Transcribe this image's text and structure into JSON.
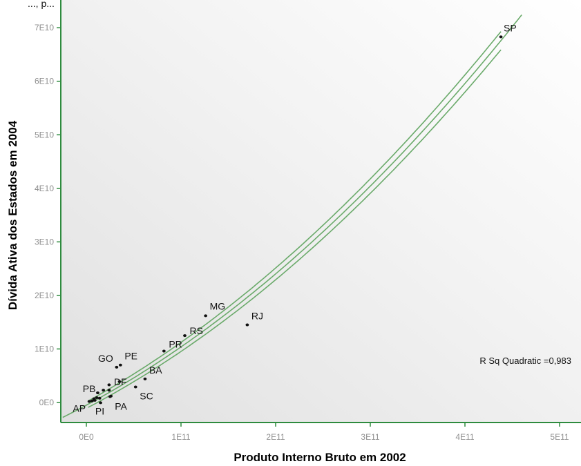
{
  "header_text": "..., p...",
  "chart_data": {
    "type": "scatter",
    "title": "",
    "xlabel": "Produto Interno Bruto em 2002",
    "ylabel": "Dívida Ativa dos Estados em 2004",
    "xlim": [
      -25000000000.0,
      500000000000.0
    ],
    "ylim": [
      -2500000000.0,
      74000000000.0
    ],
    "x_ticks": [
      0,
      100000000000.0,
      200000000000.0,
      300000000000.0,
      400000000000.0,
      500000000000.0
    ],
    "x_tick_labels": [
      "0E0",
      "1E11",
      "2E11",
      "3E11",
      "4E11",
      "5E11"
    ],
    "y_ticks": [
      0,
      10000000000.0,
      20000000000.0,
      30000000000.0,
      40000000000.0,
      50000000000.0,
      60000000000.0,
      70000000000.0
    ],
    "y_tick_labels": [
      "0E0",
      "1E10",
      "2E10",
      "3E10",
      "4E10",
      "5E10",
      "6E10",
      "7E10"
    ],
    "grid": false,
    "points": [
      {
        "label": "SP",
        "x": 438000000000.0,
        "y": 68300000000.0
      },
      {
        "label": "RJ",
        "x": 170000000000.0,
        "y": 14500000000.0
      },
      {
        "label": "MG",
        "x": 126000000000.0,
        "y": 16200000000.0
      },
      {
        "label": "RS",
        "x": 104000000000.0,
        "y": 12500000000.0
      },
      {
        "label": "PR",
        "x": 82000000000.0,
        "y": 9600000000.0
      },
      {
        "label": "BA",
        "x": 62000000000.0,
        "y": 4400000000.0
      },
      {
        "label": "SC",
        "x": 52000000000.0,
        "y": 2900000000.0
      },
      {
        "label": "PE",
        "x": 36000000000.0,
        "y": 7000000000.0
      },
      {
        "label": "GO",
        "x": 32000000000.0,
        "y": 6600000000.0
      },
      {
        "label": "DF",
        "x": 35000000000.0,
        "y": 3900000000.0
      },
      {
        "label": "PA",
        "x": 25000000000.0,
        "y": 1100000000.0
      },
      {
        "label": "PB",
        "x": 12000000000.0,
        "y": 1800000000.0
      },
      {
        "label": "PI",
        "x": 15000000000.0,
        "y": -50000000.0
      },
      {
        "label": "AP",
        "x": 3000000000.0,
        "y": 200000000.0
      },
      {
        "label": "",
        "x": 24000000000.0,
        "y": 2300000000.0
      },
      {
        "label": "",
        "x": 18000000000.0,
        "y": 2300000000.0
      },
      {
        "label": "",
        "x": 24000000000.0,
        "y": 3300000000.0
      },
      {
        "label": "",
        "x": 8000000000.0,
        "y": 700000000.0
      },
      {
        "label": "",
        "x": 11000000000.0,
        "y": 900000000.0
      },
      {
        "label": "",
        "x": 6000000000.0,
        "y": 300000000.0
      },
      {
        "label": "",
        "x": 14000000000.0,
        "y": 800000000.0
      },
      {
        "label": "",
        "x": 9000000000.0,
        "y": 400000000.0
      },
      {
        "label": "",
        "x": 26000000000.0,
        "y": 1200000000.0
      }
    ],
    "fit": {
      "type": "quadratic",
      "b0": -500000000.0,
      "b1": 0.095,
      "b2": 1.38e-13,
      "x_range": [
        -25000000000.0,
        460000000000.0
      ],
      "band_x_range": [
        2000000000.0,
        438000000000.0
      ],
      "band_half_width": [
        600000000.0,
        1700000000.0
      ],
      "line_color": "#6aaa6a"
    },
    "annotation": "R Sq Quadratic =0,983",
    "axis_color": "#2e8b3e",
    "point_color": "#111111"
  }
}
